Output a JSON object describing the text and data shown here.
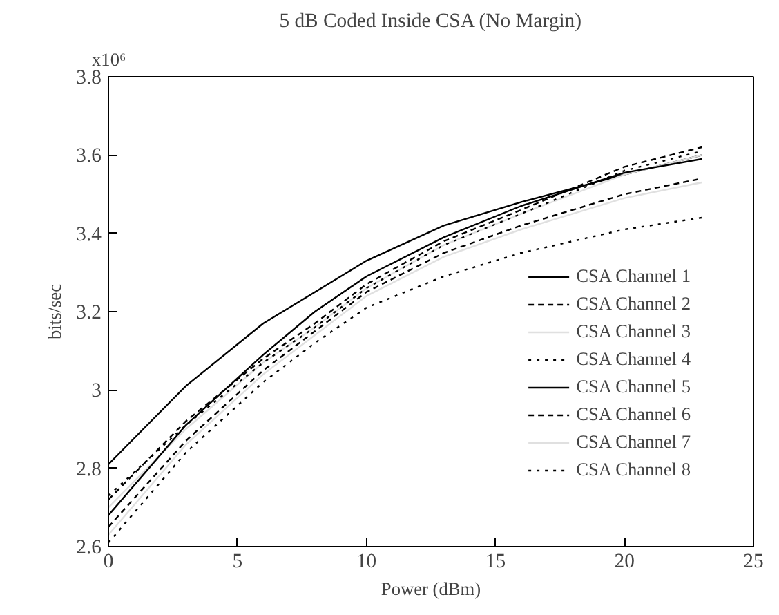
{
  "chart_data": {
    "type": "line",
    "title": "5 dB Coded Inside CSA (No Margin)",
    "xlabel": "Power (dBm)",
    "ylabel": "bits/sec",
    "annotations": [
      "x10⁶"
    ],
    "x": [
      0,
      3,
      6,
      8,
      10,
      13,
      16,
      20,
      23
    ],
    "xlim": [
      0,
      25
    ],
    "xticks": [
      0,
      5,
      10,
      15,
      20,
      25
    ],
    "ylim": [
      2.6,
      3.8
    ],
    "yticks": [
      2.6,
      2.8,
      3,
      3.2,
      3.4,
      3.6,
      3.8
    ],
    "grid": false,
    "legend": "bottom right",
    "marker": "none",
    "series": [
      {
        "name": "CSA Channel 1",
        "color": "#000000",
        "line_style": "solid",
        "values": [
          2.81,
          3.01,
          3.17,
          3.25,
          3.33,
          3.42,
          3.48,
          3.55,
          3.6
        ]
      },
      {
        "name": "CSA Channel 2",
        "color": "#000000",
        "line_style": "dashed",
        "values": [
          2.72,
          2.92,
          3.08,
          3.17,
          3.27,
          3.38,
          3.46,
          3.57,
          3.62
        ]
      },
      {
        "name": "CSA Channel 3",
        "color": "#e0e0e0",
        "line_style": "solid",
        "values": [
          2.7,
          2.9,
          3.07,
          3.16,
          3.26,
          3.37,
          3.45,
          3.55,
          3.6
        ]
      },
      {
        "name": "CSA Channel 4",
        "color": "#000000",
        "line_style": "dotted",
        "values": [
          2.73,
          2.91,
          3.07,
          3.16,
          3.26,
          3.37,
          3.45,
          3.56,
          3.61
        ]
      },
      {
        "name": "CSA Channel 5",
        "color": "#000000",
        "line_style": "solid",
        "values": [
          2.68,
          2.91,
          3.09,
          3.2,
          3.29,
          3.39,
          3.47,
          3.555,
          3.59
        ]
      },
      {
        "name": "CSA Channel 6",
        "color": "#000000",
        "line_style": "dashed",
        "values": [
          2.65,
          2.87,
          3.05,
          3.15,
          3.25,
          3.35,
          3.42,
          3.5,
          3.54
        ]
      },
      {
        "name": "CSA Channel 7",
        "color": "#e0e0e0",
        "line_style": "solid",
        "values": [
          2.63,
          2.86,
          3.04,
          3.14,
          3.24,
          3.34,
          3.41,
          3.49,
          3.53
        ]
      },
      {
        "name": "CSA Channel 8",
        "color": "#000000",
        "line_style": "dotted",
        "values": [
          2.61,
          2.84,
          3.02,
          3.12,
          3.21,
          3.29,
          3.35,
          3.41,
          3.44
        ]
      }
    ]
  }
}
